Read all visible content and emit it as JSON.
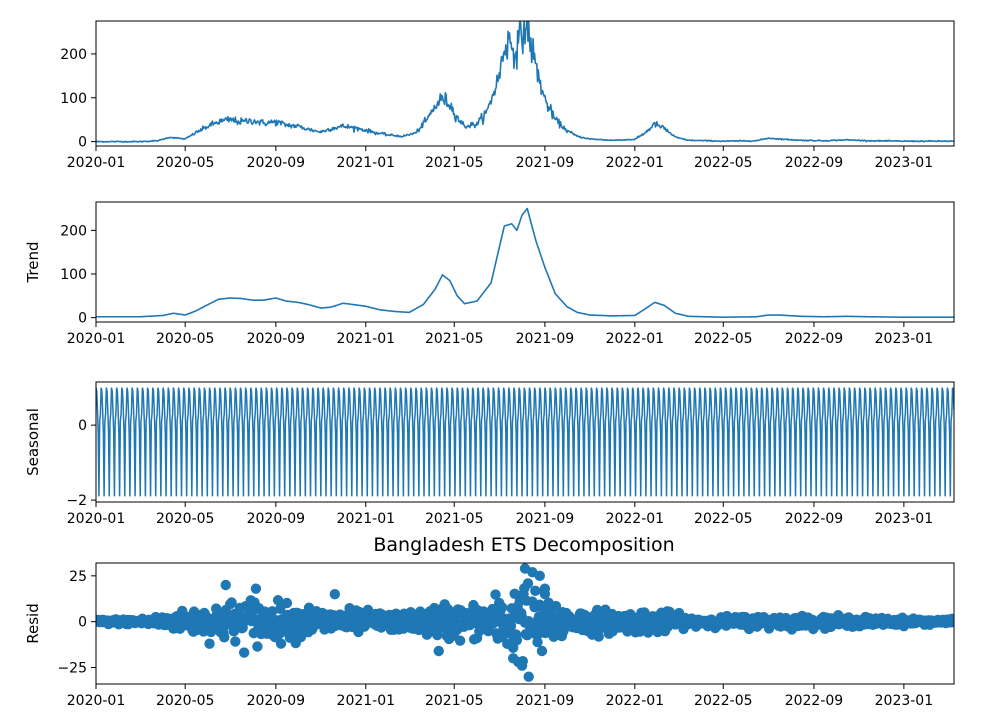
{
  "figure": {
    "title": "Bangladesh ETS Decomposition"
  },
  "colors": {
    "series": "#1f77b4",
    "axes": "#000000",
    "background": "#ffffff"
  },
  "x_axis": {
    "type": "date",
    "range": [
      "2020-01-01",
      "2023-03-10"
    ],
    "ticks": [
      {
        "date": "2020-01-01",
        "label": "2020-01"
      },
      {
        "date": "2020-05-01",
        "label": "2020-05"
      },
      {
        "date": "2020-09-01",
        "label": "2020-09"
      },
      {
        "date": "2021-01-01",
        "label": "2021-01"
      },
      {
        "date": "2021-05-01",
        "label": "2021-05"
      },
      {
        "date": "2021-09-01",
        "label": "2021-09"
      },
      {
        "date": "2022-01-01",
        "label": "2022-01"
      },
      {
        "date": "2022-05-01",
        "label": "2022-05"
      },
      {
        "date": "2022-09-01",
        "label": "2022-09"
      },
      {
        "date": "2023-01-01",
        "label": "2023-01"
      }
    ]
  },
  "chart_data": [
    {
      "type": "line",
      "panel": "observed",
      "ylabel": "",
      "ylim": [
        -10,
        275
      ],
      "yticks": [
        0,
        100,
        200
      ],
      "points": [
        [
          "2020-01-01",
          0
        ],
        [
          "2020-03-01",
          0
        ],
        [
          "2020-03-25",
          2
        ],
        [
          "2020-04-10",
          10
        ],
        [
          "2020-04-20",
          8
        ],
        [
          "2020-05-01",
          6
        ],
        [
          "2020-05-15",
          20
        ],
        [
          "2020-06-01",
          35
        ],
        [
          "2020-06-15",
          45
        ],
        [
          "2020-07-01",
          50
        ],
        [
          "2020-07-15",
          45
        ],
        [
          "2020-08-01",
          48
        ],
        [
          "2020-08-15",
          42
        ],
        [
          "2020-09-01",
          45
        ],
        [
          "2020-09-15",
          38
        ],
        [
          "2020-10-01",
          35
        ],
        [
          "2020-10-15",
          28
        ],
        [
          "2020-11-01",
          22
        ],
        [
          "2020-11-15",
          30
        ],
        [
          "2020-12-01",
          35
        ],
        [
          "2020-12-15",
          32
        ],
        [
          "2021-01-01",
          26
        ],
        [
          "2021-01-15",
          20
        ],
        [
          "2021-02-01",
          15
        ],
        [
          "2021-02-20",
          12
        ],
        [
          "2021-03-10",
          20
        ],
        [
          "2021-03-25",
          50
        ],
        [
          "2021-04-05",
          80
        ],
        [
          "2021-04-15",
          100
        ],
        [
          "2021-04-25",
          85
        ],
        [
          "2021-05-05",
          55
        ],
        [
          "2021-05-15",
          35
        ],
        [
          "2021-06-01",
          40
        ],
        [
          "2021-06-15",
          70
        ],
        [
          "2021-07-01",
          150
        ],
        [
          "2021-07-08",
          215
        ],
        [
          "2021-07-15",
          230
        ],
        [
          "2021-07-22",
          205
        ],
        [
          "2021-08-01",
          245
        ],
        [
          "2021-08-07",
          262
        ],
        [
          "2021-08-12",
          230
        ],
        [
          "2021-08-20",
          170
        ],
        [
          "2021-09-01",
          95
        ],
        [
          "2021-09-15",
          50
        ],
        [
          "2021-10-01",
          25
        ],
        [
          "2021-10-15",
          12
        ],
        [
          "2021-11-01",
          6
        ],
        [
          "2021-12-01",
          3
        ],
        [
          "2022-01-01",
          5
        ],
        [
          "2022-01-15",
          20
        ],
        [
          "2022-01-28",
          40
        ],
        [
          "2022-02-10",
          30
        ],
        [
          "2022-02-25",
          10
        ],
        [
          "2022-03-15",
          3
        ],
        [
          "2022-05-01",
          1
        ],
        [
          "2022-06-15",
          2
        ],
        [
          "2022-07-01",
          8
        ],
        [
          "2022-07-15",
          6
        ],
        [
          "2022-08-15",
          3
        ],
        [
          "2022-09-15",
          2
        ],
        [
          "2022-10-15",
          4
        ],
        [
          "2022-11-15",
          2
        ],
        [
          "2023-01-01",
          1
        ],
        [
          "2023-03-10",
          1
        ]
      ]
    },
    {
      "type": "line",
      "panel": "trend",
      "ylabel": "Trend",
      "ylim": [
        -10,
        265
      ],
      "yticks": [
        0,
        100,
        200
      ],
      "points": [
        [
          "2020-01-01",
          2
        ],
        [
          "2020-03-01",
          2
        ],
        [
          "2020-04-01",
          5
        ],
        [
          "2020-04-15",
          10
        ],
        [
          "2020-05-01",
          6
        ],
        [
          "2020-05-15",
          15
        ],
        [
          "2020-06-01",
          30
        ],
        [
          "2020-06-15",
          42
        ],
        [
          "2020-07-01",
          45
        ],
        [
          "2020-07-15",
          44
        ],
        [
          "2020-08-01",
          40
        ],
        [
          "2020-08-15",
          40
        ],
        [
          "2020-09-01",
          45
        ],
        [
          "2020-09-15",
          38
        ],
        [
          "2020-10-01",
          35
        ],
        [
          "2020-10-15",
          30
        ],
        [
          "2020-11-01",
          22
        ],
        [
          "2020-11-15",
          24
        ],
        [
          "2020-12-01",
          33
        ],
        [
          "2020-12-15",
          30
        ],
        [
          "2021-01-01",
          26
        ],
        [
          "2021-01-20",
          18
        ],
        [
          "2021-02-10",
          14
        ],
        [
          "2021-03-01",
          12
        ],
        [
          "2021-03-20",
          30
        ],
        [
          "2021-04-05",
          65
        ],
        [
          "2021-04-15",
          98
        ],
        [
          "2021-04-25",
          85
        ],
        [
          "2021-05-05",
          50
        ],
        [
          "2021-05-15",
          32
        ],
        [
          "2021-06-01",
          38
        ],
        [
          "2021-06-20",
          80
        ],
        [
          "2021-07-01",
          160
        ],
        [
          "2021-07-08",
          210
        ],
        [
          "2021-07-18",
          215
        ],
        [
          "2021-07-25",
          200
        ],
        [
          "2021-08-01",
          235
        ],
        [
          "2021-08-08",
          250
        ],
        [
          "2021-08-20",
          175
        ],
        [
          "2021-09-01",
          115
        ],
        [
          "2021-09-15",
          55
        ],
        [
          "2021-10-01",
          25
        ],
        [
          "2021-10-15",
          12
        ],
        [
          "2021-11-01",
          6
        ],
        [
          "2021-12-01",
          4
        ],
        [
          "2022-01-01",
          5
        ],
        [
          "2022-01-15",
          20
        ],
        [
          "2022-01-28",
          35
        ],
        [
          "2022-02-10",
          28
        ],
        [
          "2022-02-25",
          10
        ],
        [
          "2022-03-15",
          3
        ],
        [
          "2022-05-01",
          1
        ],
        [
          "2022-06-15",
          2
        ],
        [
          "2022-07-01",
          6
        ],
        [
          "2022-07-15",
          6
        ],
        [
          "2022-08-15",
          3
        ],
        [
          "2022-09-15",
          2
        ],
        [
          "2022-10-15",
          3
        ],
        [
          "2022-11-15",
          2
        ],
        [
          "2023-01-01",
          1
        ],
        [
          "2023-03-10",
          1
        ]
      ]
    },
    {
      "type": "line",
      "panel": "seasonal",
      "ylabel": "Seasonal",
      "ylim": [
        -2.05,
        1.15
      ],
      "yticks": [
        -2,
        0
      ],
      "period_days": 7,
      "pattern": [
        1.0,
        0.9,
        0.4,
        -0.2,
        -1.9,
        0.1,
        0.3
      ]
    },
    {
      "type": "scatter",
      "panel": "resid",
      "ylabel": "Resid",
      "ylim": [
        -34,
        32
      ],
      "yticks": [
        -25,
        0,
        25
      ],
      "title": "Bangladesh ETS Decomposition",
      "amplitude_envelope": [
        [
          "2020-01-01",
          1
        ],
        [
          "2020-03-01",
          1.5
        ],
        [
          "2020-04-15",
          4
        ],
        [
          "2020-06-15",
          9
        ],
        [
          "2020-08-01",
          12
        ],
        [
          "2020-09-01",
          9
        ],
        [
          "2020-11-01",
          7
        ],
        [
          "2021-01-01",
          5
        ],
        [
          "2021-03-01",
          4
        ],
        [
          "2021-04-15",
          9
        ],
        [
          "2021-06-01",
          8
        ],
        [
          "2021-07-15",
          16
        ],
        [
          "2021-08-10",
          20
        ],
        [
          "2021-09-01",
          12
        ],
        [
          "2021-10-15",
          6
        ],
        [
          "2022-01-01",
          5
        ],
        [
          "2022-02-01",
          6
        ],
        [
          "2022-03-15",
          2
        ],
        [
          "2022-07-01",
          3
        ],
        [
          "2022-10-01",
          2.5
        ],
        [
          "2023-03-10",
          1
        ]
      ],
      "notable_points": [
        [
          "2020-06-25",
          20
        ],
        [
          "2020-08-05",
          18
        ],
        [
          "2020-11-20",
          15
        ],
        [
          "2021-04-10",
          -16
        ],
        [
          "2021-07-20",
          -20
        ],
        [
          "2021-08-05",
          29
        ],
        [
          "2021-08-10",
          -30
        ],
        [
          "2021-08-15",
          27
        ],
        [
          "2021-08-25",
          25
        ],
        [
          "2021-09-01",
          18
        ],
        [
          "2021-08-28",
          -16
        ],
        [
          "2021-08-01",
          -24
        ]
      ]
    }
  ]
}
